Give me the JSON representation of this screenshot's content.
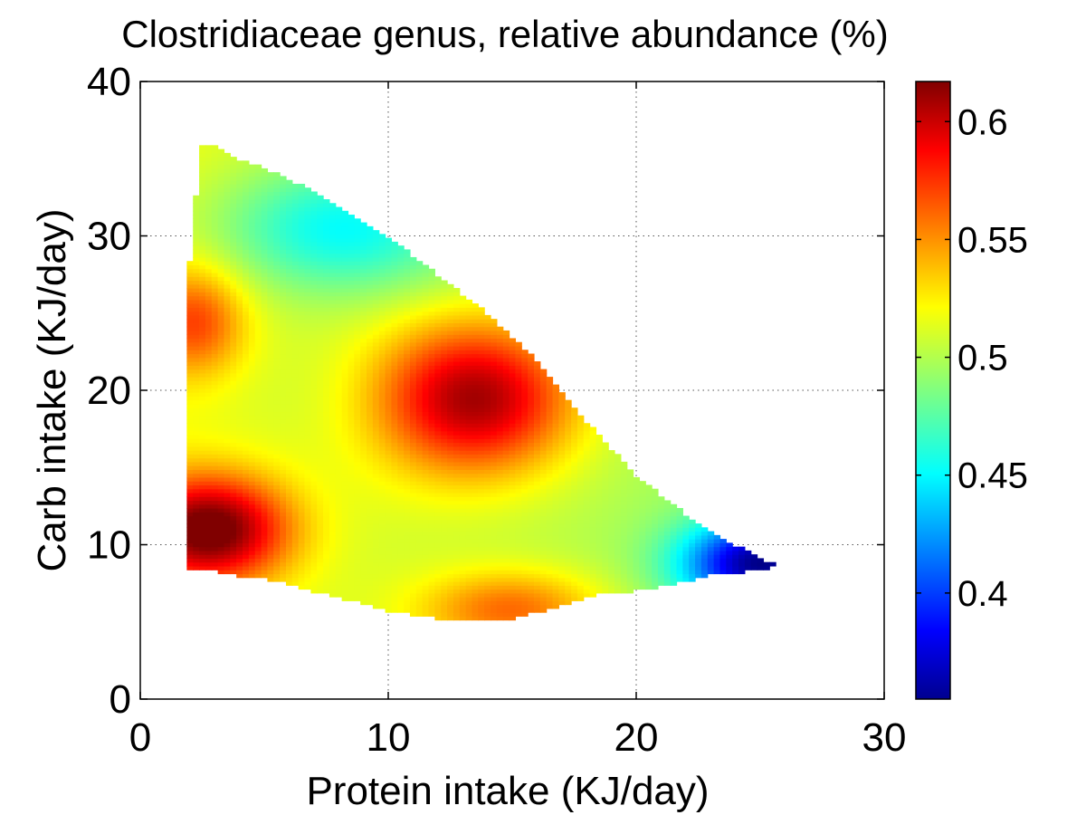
{
  "chart_data": {
    "type": "heatmap",
    "title": "Clostridiaceae genus, relative abundance (%)",
    "xlabel": "Protein intake (KJ/day)",
    "ylabel": "Carb intake (KJ/day)",
    "xlim": [
      0,
      30
    ],
    "ylim": [
      0,
      40
    ],
    "xticks": [
      0,
      10,
      20,
      30
    ],
    "yticks": [
      0,
      10,
      20,
      30,
      40
    ],
    "x_tick_labels": [
      "0",
      "10",
      "20",
      "30"
    ],
    "y_tick_labels": [
      "0",
      "10",
      "20",
      "30",
      "40"
    ],
    "grid": true,
    "colormap": "jet",
    "colorbar": {
      "range": [
        0.355,
        0.617
      ],
      "ticks": [
        0.4,
        0.45,
        0.5,
        0.55,
        0.6
      ],
      "tick_labels": [
        "0.4",
        "0.45",
        "0.5",
        "0.55",
        "0.6"
      ],
      "placement": "right"
    },
    "region_boundary": [
      [
        2.0,
        8.5
      ],
      [
        2.5,
        8.5
      ],
      [
        3.0,
        8.3
      ],
      [
        4.0,
        8.0
      ],
      [
        5.0,
        7.8
      ],
      [
        6.0,
        7.4
      ],
      [
        7.0,
        7.0
      ],
      [
        8.0,
        6.6
      ],
      [
        9.0,
        6.2
      ],
      [
        10.0,
        5.7
      ],
      [
        11.0,
        5.5
      ],
      [
        12.0,
        5.2
      ],
      [
        13.0,
        5.0
      ],
      [
        15.0,
        5.2
      ],
      [
        16.0,
        5.6
      ],
      [
        17.0,
        6.0
      ],
      [
        18.0,
        6.6
      ],
      [
        19.0,
        6.9
      ],
      [
        20.0,
        7.0
      ],
      [
        21.0,
        7.3
      ],
      [
        22.0,
        7.6
      ],
      [
        23.0,
        8.0
      ],
      [
        24.0,
        8.2
      ],
      [
        25.0,
        8.4
      ],
      [
        25.7,
        8.6
      ],
      [
        24.0,
        10.0
      ],
      [
        22.0,
        12.0
      ],
      [
        20.0,
        14.5
      ],
      [
        18.0,
        18.0
      ],
      [
        16.0,
        22.0
      ],
      [
        15.0,
        23.5
      ],
      [
        14.0,
        25.0
      ],
      [
        12.0,
        27.5
      ],
      [
        10.0,
        30.0
      ],
      [
        8.0,
        32.0
      ],
      [
        6.0,
        33.7
      ],
      [
        4.0,
        35.0
      ],
      [
        3.0,
        36.0
      ],
      [
        2.5,
        36.0
      ],
      [
        2.3,
        33.5
      ],
      [
        2.0,
        28.3
      ]
    ],
    "surface_features": [
      {
        "x": 13.5,
        "y": 19.5,
        "value": 0.61,
        "sx": 2.8,
        "sy": 3.4
      },
      {
        "x": 2.8,
        "y": 11.0,
        "value": 0.62,
        "sx": 2.2,
        "sy": 2.4
      },
      {
        "x": 2.2,
        "y": 24.5,
        "value": 0.56,
        "sx": 1.4,
        "sy": 2.4
      },
      {
        "x": 15.0,
        "y": 5.8,
        "value": 0.56,
        "sx": 2.6,
        "sy": 1.8
      },
      {
        "x": 25.0,
        "y": 8.8,
        "value": 0.37,
        "sx": 2.2,
        "sy": 2.0
      },
      {
        "x": 8.0,
        "y": 30.5,
        "value": 0.45,
        "sx": 3.5,
        "sy": 3.0
      },
      {
        "x": 7.5,
        "y": 20.0,
        "value": 0.5,
        "sx": 3.0,
        "sy": 3.0
      }
    ]
  }
}
